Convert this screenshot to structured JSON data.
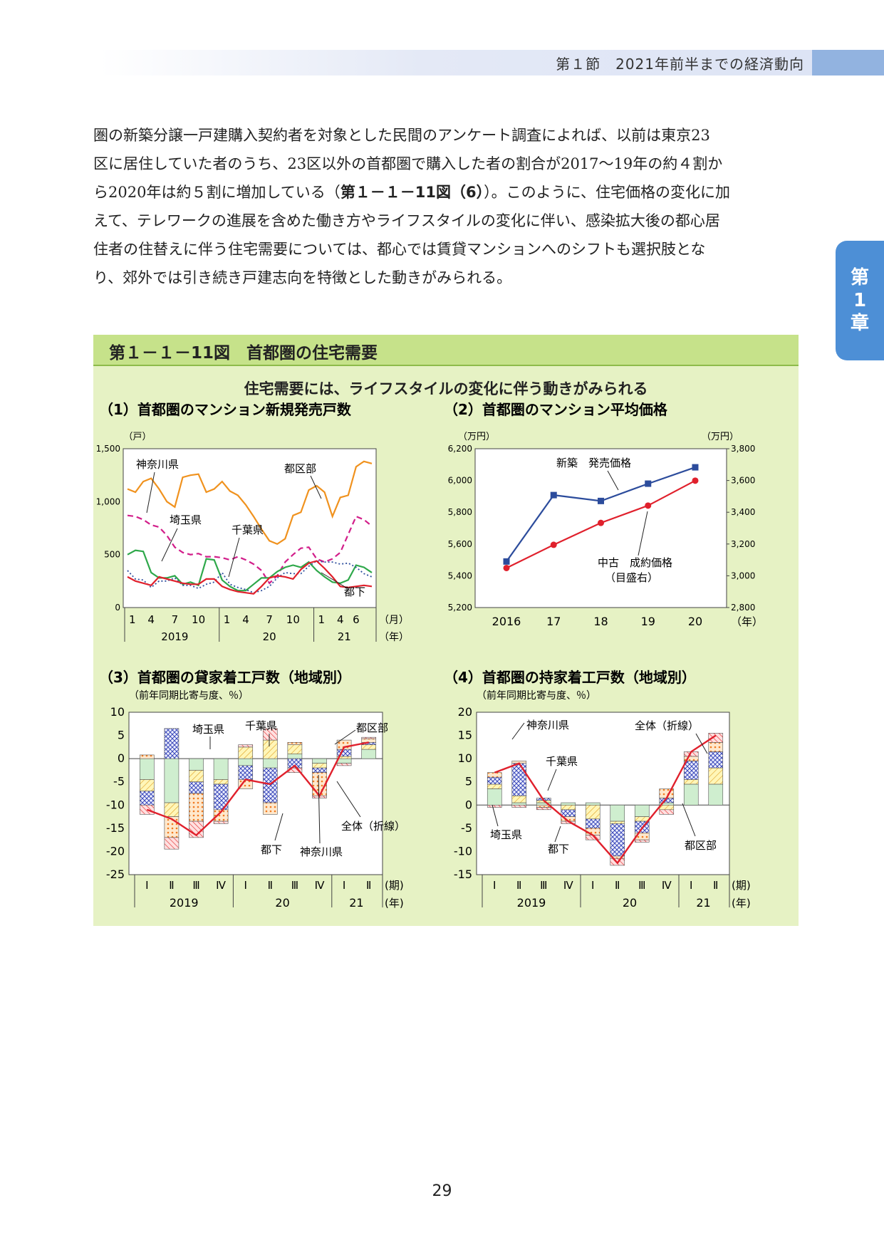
{
  "header": {
    "text": "第１節　2021年前半までの経済動向"
  },
  "chapter_tab": {
    "line1": "第",
    "line2": "1",
    "line3": "章"
  },
  "body": {
    "lines": [
      "圏の新築分譲一戸建購入契約者を対象とした民間のアンケート調査によれば、以前は東京23",
      "区に居住していた者のうち、23区以外の首都圏で購入した者の割合が2017～19年の約４割か",
      "ら2020年は約５割に増加している（",
      "えて、テレワークの進展を含めた働き方やライフスタイルの変化に伴い、感染拡大後の都心居",
      "住者の住替えに伴う住宅需要については、都心では賃貸マンションへのシフトも選択肢とな",
      "り、郊外では引き続き戸建志向を特徴とした動きがみられる。"
    ],
    "ref_bold": "第１－１－11図（6）",
    "line3_tail": "）。このように、住宅価格の変化に加"
  },
  "figure": {
    "title": "第１－１－11図　首都圏の住宅需要",
    "subtitle": "住宅需要には、ライフスタイルの変化に伴う動きがみられる"
  },
  "page_number": "29",
  "chart_data": [
    {
      "id": 1,
      "type": "line",
      "title": "（1）首都圏のマンション新規発売戸数",
      "ylabel": "（戸）",
      "ylim": [
        0,
        1500
      ],
      "yticks": [
        "0",
        "500",
        "1,000",
        "1,500"
      ],
      "x_month_ticks": [
        "1",
        "4",
        "7",
        "10",
        "1",
        "4",
        "7",
        "10",
        "1",
        "4",
        "6"
      ],
      "x_unit": "（月）",
      "x_year_labels": [
        "2019",
        "20",
        "21"
      ],
      "x_year_unit": "（年）",
      "x_start": "2019-01",
      "series": [
        {
          "name": "都区部",
          "color": "#f0921e",
          "style": "solid",
          "values": [
            1120,
            1090,
            1190,
            1220,
            1120,
            1000,
            950,
            1230,
            1250,
            1260,
            1090,
            1120,
            1190,
            1100,
            1060,
            970,
            860,
            740,
            630,
            600,
            650,
            870,
            900,
            1110,
            1150,
            1090,
            860,
            1040,
            1060,
            1330,
            1380,
            1360
          ]
        },
        {
          "name": "神奈川県",
          "color": "#d21e8a",
          "style": "dashed",
          "values": [
            870,
            860,
            830,
            780,
            760,
            680,
            570,
            520,
            500,
            510,
            480,
            480,
            470,
            450,
            480,
            450,
            410,
            350,
            230,
            300,
            430,
            500,
            560,
            570,
            460,
            430,
            460,
            520,
            690,
            860,
            830,
            770
          ]
        },
        {
          "name": "埼玉県",
          "color": "#2ea84a",
          "style": "solid",
          "values": [
            500,
            540,
            530,
            330,
            280,
            280,
            300,
            220,
            240,
            210,
            460,
            450,
            260,
            200,
            160,
            160,
            220,
            280,
            280,
            340,
            380,
            400,
            380,
            430,
            350,
            290,
            240,
            230,
            260,
            400,
            380,
            330
          ]
        },
        {
          "name": "千葉県",
          "color": "#2f4f9e",
          "style": "dotted",
          "values": [
            350,
            270,
            260,
            190,
            250,
            250,
            280,
            210,
            210,
            180,
            220,
            240,
            330,
            220,
            190,
            170,
            140,
            160,
            200,
            280,
            330,
            320,
            320,
            390,
            440,
            430,
            430,
            410,
            420,
            380,
            320,
            290
          ]
        },
        {
          "name": "都下",
          "color": "#e0202c",
          "style": "solid",
          "values": [
            290,
            250,
            230,
            210,
            290,
            270,
            250,
            230,
            220,
            220,
            270,
            270,
            200,
            170,
            150,
            140,
            130,
            200,
            280,
            300,
            290,
            270,
            360,
            420,
            440,
            370,
            290,
            200,
            190,
            200,
            210,
            200
          ]
        }
      ]
    },
    {
      "id": 2,
      "type": "line",
      "title": "（2）首都圏のマンション平均価格",
      "ylabel_left": "（万円）",
      "ylabel_right": "（万円）",
      "ylim_left": [
        5200,
        6200
      ],
      "ylim_right": [
        2800,
        3800
      ],
      "yticks_left": [
        "5,200",
        "5,400",
        "5,600",
        "5,800",
        "6,000",
        "6,200"
      ],
      "yticks_right": [
        "2,800",
        "3,000",
        "3,200",
        "3,400",
        "3,600",
        "3,800"
      ],
      "categories": [
        "2016",
        "17",
        "18",
        "19",
        "20"
      ],
      "x_unit": "（年）",
      "series": [
        {
          "name": "新築　発売価格",
          "axis": "left",
          "color": "#2c4c9c",
          "marker": "square",
          "values": [
            5490,
            5908,
            5871,
            5980,
            6083
          ]
        },
        {
          "name": "中古　成約価格（目盛右）",
          "axis": "right",
          "color": "#e0202c",
          "marker": "circle",
          "values": [
            3049,
            3195,
            3333,
            3442,
            3599
          ]
        }
      ],
      "annotation_new": "新築　発売価格",
      "annotation_used_1": "中古　成約価格",
      "annotation_used_2": "（目盛右）"
    },
    {
      "id": 3,
      "type": "bar",
      "title": "（3）首都圏の貸家着工戸数（地域別）",
      "ylabel": "（前年同期比寄与度、％）",
      "ylim": [
        -25,
        10
      ],
      "yticks": [
        "10",
        "5",
        "0",
        "-5",
        "-10",
        "-15",
        "-20",
        "-25"
      ],
      "categories": [
        "Ⅰ",
        "Ⅱ",
        "Ⅲ",
        "Ⅳ",
        "Ⅰ",
        "Ⅱ",
        "Ⅲ",
        "Ⅳ",
        "Ⅰ",
        "Ⅱ"
      ],
      "x_unit": "(期)",
      "x_year_labels": [
        "2019",
        "20",
        "21"
      ],
      "x_year_unit": "(年)",
      "series": [
        {
          "name": "埼玉県",
          "values": [
            -4.5,
            -9.5,
            -2.5,
            -4.5,
            -1.5,
            -2.0,
            1.0,
            -1.0,
            -1.0,
            2.0
          ]
        },
        {
          "name": "千葉県",
          "values": [
            -2.5,
            -3.0,
            -2.5,
            -1.0,
            2.5,
            4.0,
            2.0,
            -1.0,
            0.5,
            1.0
          ]
        },
        {
          "name": "神奈川県",
          "values": [
            -3.0,
            6.5,
            -2.5,
            -5.5,
            -3.0,
            -7.5,
            -2.0,
            -1.0,
            1.5,
            0.5
          ]
        },
        {
          "name": "都区部",
          "values": [
            0.8,
            -4.5,
            -6.0,
            -2.5,
            -2.0,
            -2.5,
            0.5,
            -5.0,
            2.0,
            0.8
          ]
        },
        {
          "name": "都下",
          "values": [
            -2.0,
            -2.5,
            -3.5,
            -0.5,
            0.5,
            2.5,
            -1.0,
            -0.5,
            -0.5,
            0.3
          ]
        }
      ],
      "total": {
        "name": "全体（折線）",
        "values": [
          -11.0,
          -13.0,
          -16.5,
          -11.5,
          -4.5,
          -5.5,
          -1.5,
          -8.0,
          2.5,
          3.5
        ]
      }
    },
    {
      "id": 4,
      "type": "bar",
      "title": "（4）首都圏の持家着工戸数（地域別）",
      "ylabel": "（前年同期比寄与度、％）",
      "ylim": [
        -15,
        20
      ],
      "yticks": [
        "20",
        "15",
        "10",
        "5",
        "0",
        "-5",
        "-10",
        "-15"
      ],
      "categories": [
        "Ⅰ",
        "Ⅱ",
        "Ⅲ",
        "Ⅳ",
        "Ⅰ",
        "Ⅱ",
        "Ⅲ",
        "Ⅳ",
        "Ⅰ",
        "Ⅱ"
      ],
      "x_unit": "(期)",
      "x_year_labels": [
        "2019",
        "20",
        "21"
      ],
      "x_year_unit": "(年)",
      "series": [
        {
          "name": "埼玉県",
          "values": [
            3.5,
            0.5,
            0.5,
            0.5,
            0.5,
            -3.5,
            -2.5,
            0.5,
            4.5,
            4.5
          ]
        },
        {
          "name": "千葉県",
          "values": [
            1.0,
            1.5,
            0.5,
            -1.0,
            -3.0,
            -0.5,
            -1.0,
            -1.0,
            1.0,
            3.5
          ]
        },
        {
          "name": "神奈川県",
          "values": [
            1.5,
            7.0,
            0.5,
            -1.5,
            -2.0,
            -7.0,
            -2.5,
            1.0,
            4.0,
            3.5
          ]
        },
        {
          "name": "都区部",
          "values": [
            1.0,
            0.5,
            -0.5,
            -1.0,
            -1.5,
            -0.5,
            -1.5,
            2.0,
            1.0,
            2.0
          ]
        },
        {
          "name": "都下",
          "values": [
            -0.5,
            -0.5,
            -0.5,
            -0.5,
            -1.0,
            -1.5,
            -0.5,
            -1.0,
            1.0,
            2.0
          ]
        }
      ],
      "total": {
        "name": "全体（折線）",
        "values": [
          7.0,
          9.0,
          1.0,
          -3.5,
          -6.5,
          -12.5,
          -5.0,
          1.5,
          11.5,
          15.0
        ]
      }
    }
  ],
  "chart_labels": {
    "c1": {
      "tokubu": "都区部",
      "kanagawa": "神奈川県",
      "saitama": "埼玉県",
      "chiba": "千葉県",
      "toka": "都下"
    },
    "c3": {
      "saitama": "埼玉県",
      "chiba": "千葉県",
      "tokubu": "都区部",
      "total": "全体（折線）",
      "toka": "都下",
      "kanagawa": "神奈川県"
    },
    "c4": {
      "kanagawa": "神奈川県",
      "total": "全体（折線）",
      "chiba": "千葉県",
      "saitama": "埼玉県",
      "toka": "都下",
      "tokubu": "都区部"
    }
  },
  "colors": {
    "figure_bg": "#e6f2c4",
    "title_bar": "#c6e28a",
    "chapter_tab": "#4d8fd6"
  }
}
